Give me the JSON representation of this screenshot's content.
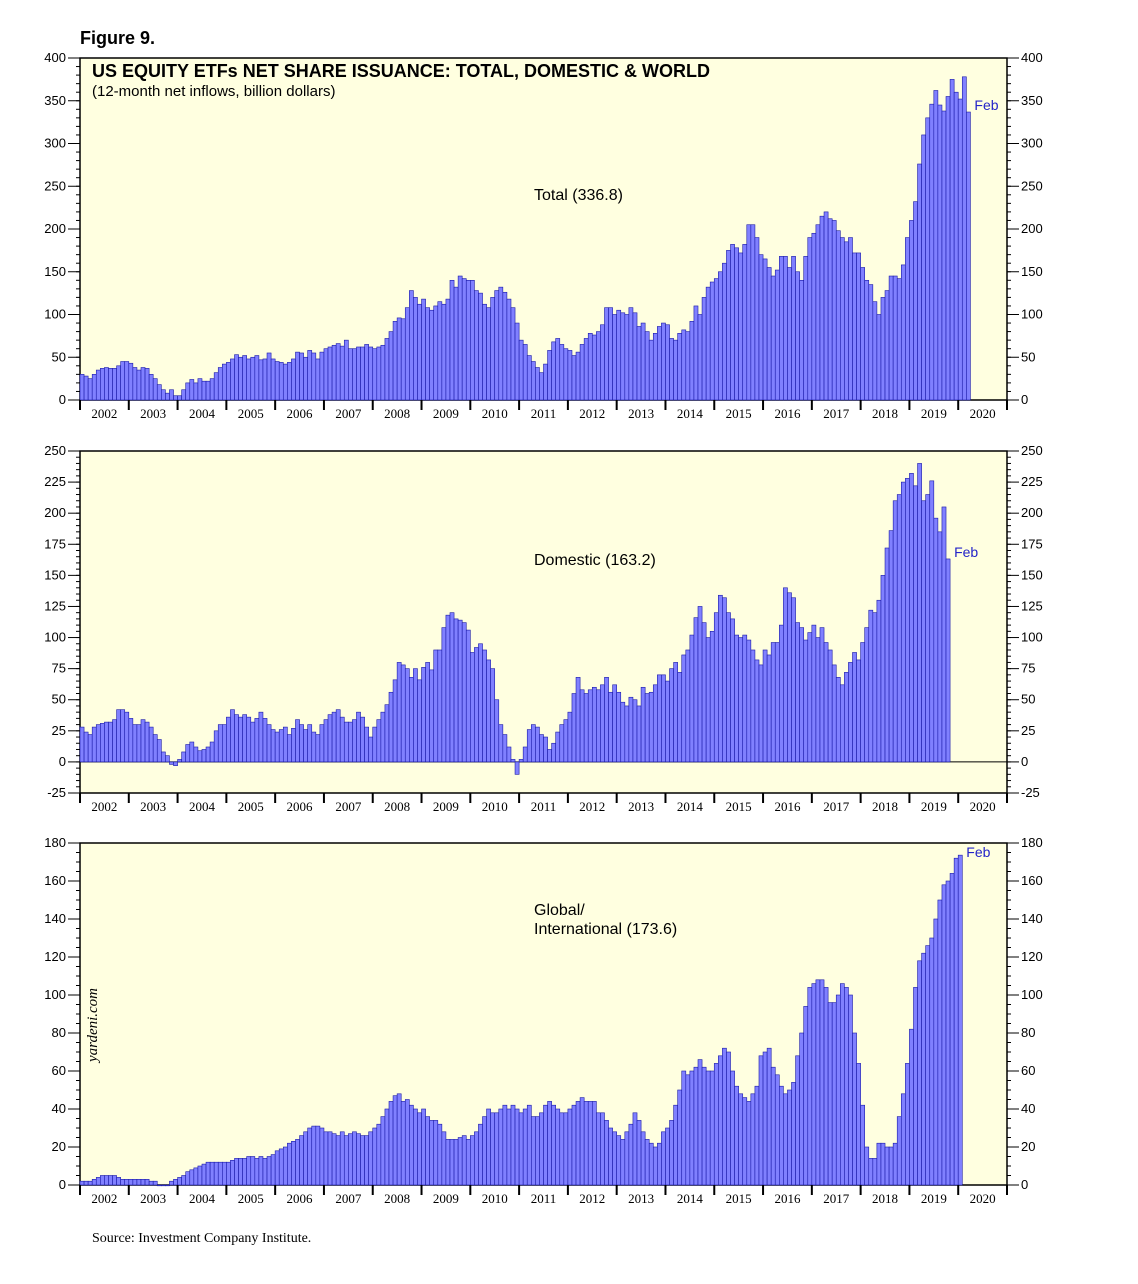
{
  "figure_label": "Figure 9.",
  "source_note": "Source: Investment Company Institute.",
  "watermark": "yardeni.com",
  "colors": {
    "panel_bg": "#ffffe0",
    "bar_fill": "#8080ff",
    "bar_stroke": "#1a1aa8",
    "annotation": "#2424c8"
  },
  "chart_data": [
    {
      "type": "bar",
      "title": "US EQUITY ETFs NET SHARE ISSUANCE: TOTAL, DOMESTIC & WORLD",
      "subtitle": "(12-month net inflows, billion dollars)",
      "series_label": "Total (336.8)",
      "last_point_label": "Feb",
      "x_start": "2002-01",
      "x_end": "2020-12",
      "x_tick_labels": [
        "2002",
        "2003",
        "2004",
        "2005",
        "2006",
        "2007",
        "2008",
        "2009",
        "2010",
        "2011",
        "2012",
        "2013",
        "2014",
        "2015",
        "2016",
        "2017",
        "2018",
        "2019",
        "2020"
      ],
      "ylim": [
        0,
        400
      ],
      "yticks": [
        0,
        50,
        100,
        150,
        200,
        250,
        300,
        350,
        400
      ],
      "values": [
        30,
        28,
        25,
        30,
        35,
        37,
        38,
        37,
        37,
        40,
        45,
        45,
        43,
        38,
        35,
        38,
        37,
        30,
        25,
        18,
        12,
        8,
        12,
        5,
        5,
        12,
        20,
        24,
        20,
        25,
        22,
        22,
        25,
        32,
        38,
        42,
        44,
        48,
        53,
        50,
        52,
        48,
        50,
        52,
        47,
        48,
        55,
        48,
        45,
        44,
        42,
        44,
        48,
        56,
        55,
        50,
        58,
        55,
        48,
        56,
        60,
        62,
        64,
        66,
        63,
        70,
        60,
        60,
        62,
        62,
        65,
        62,
        60,
        62,
        64,
        72,
        80,
        92,
        96,
        95,
        108,
        128,
        120,
        112,
        118,
        108,
        105,
        110,
        115,
        112,
        118,
        140,
        132,
        145,
        142,
        140,
        140,
        128,
        125,
        112,
        108,
        120,
        128,
        132,
        126,
        118,
        108,
        90,
        70,
        65,
        52,
        45,
        38,
        32,
        42,
        58,
        68,
        72,
        65,
        60,
        58,
        52,
        56,
        65,
        72,
        78,
        76,
        80,
        88,
        108,
        108,
        100,
        105,
        102,
        100,
        108,
        102,
        86,
        90,
        80,
        70,
        78,
        86,
        90,
        88,
        72,
        70,
        78,
        82,
        80,
        92,
        110,
        100,
        120,
        132,
        138,
        142,
        150,
        160,
        175,
        182,
        178,
        172,
        182,
        205,
        205,
        190,
        170,
        165,
        155,
        145,
        152,
        168,
        168,
        155,
        168,
        150,
        140,
        168,
        190,
        195,
        205,
        215,
        220,
        212,
        210,
        198,
        190,
        185,
        190,
        172,
        172,
        155,
        140,
        135,
        115,
        100,
        120,
        128,
        145,
        145,
        142,
        158,
        190,
        210,
        232,
        276,
        310,
        330,
        346,
        362,
        345,
        338,
        355,
        375,
        360,
        352,
        378,
        336.8
      ]
    },
    {
      "type": "bar",
      "series_label": "Domestic (163.2)",
      "last_point_label": "Feb",
      "x_start": "2002-01",
      "x_end": "2020-12",
      "x_tick_labels": [
        "2002",
        "2003",
        "2004",
        "2005",
        "2006",
        "2007",
        "2008",
        "2009",
        "2010",
        "2011",
        "2012",
        "2013",
        "2014",
        "2015",
        "2016",
        "2017",
        "2018",
        "2019",
        "2020"
      ],
      "ylim": [
        -25,
        250
      ],
      "yticks": [
        -25,
        0,
        25,
        50,
        75,
        100,
        125,
        150,
        175,
        200,
        225,
        250
      ],
      "values": [
        28,
        24,
        22,
        28,
        30,
        31,
        32,
        32,
        34,
        42,
        42,
        40,
        35,
        30,
        30,
        34,
        32,
        28,
        22,
        18,
        8,
        5,
        -2,
        -3,
        2,
        8,
        14,
        16,
        12,
        9,
        10,
        12,
        16,
        25,
        30,
        30,
        36,
        42,
        38,
        36,
        38,
        36,
        32,
        35,
        40,
        35,
        30,
        26,
        24,
        26,
        28,
        22,
        27,
        34,
        30,
        26,
        30,
        24,
        22,
        30,
        34,
        38,
        40,
        42,
        36,
        32,
        32,
        34,
        40,
        36,
        28,
        20,
        28,
        34,
        40,
        46,
        56,
        66,
        80,
        78,
        75,
        68,
        75,
        66,
        76,
        80,
        74,
        90,
        90,
        108,
        118,
        120,
        115,
        114,
        112,
        106,
        88,
        92,
        95,
        90,
        82,
        75,
        50,
        30,
        22,
        12,
        2,
        -10,
        2,
        12,
        26,
        30,
        28,
        22,
        20,
        10,
        15,
        24,
        30,
        34,
        40,
        55,
        68,
        58,
        55,
        58,
        60,
        58,
        62,
        68,
        56,
        62,
        56,
        48,
        45,
        52,
        50,
        45,
        60,
        55,
        56,
        62,
        70,
        70,
        65,
        75,
        80,
        72,
        86,
        90,
        102,
        116,
        125,
        112,
        100,
        105,
        120,
        134,
        132,
        120,
        115,
        102,
        100,
        102,
        98,
        90,
        82,
        78,
        90,
        86,
        96,
        96,
        110,
        140,
        136,
        132,
        112,
        108,
        98,
        104,
        110,
        100,
        108,
        96,
        90,
        78,
        68,
        62,
        72,
        80,
        88,
        82,
        96,
        108,
        122,
        120,
        130,
        150,
        172,
        186,
        210,
        215,
        225,
        228,
        232,
        222,
        240,
        210,
        215,
        226,
        196,
        185,
        205,
        163.2
      ]
    },
    {
      "type": "bar",
      "series_label_lines": [
        "Global/",
        "International (173.6)"
      ],
      "last_point_label": "Feb",
      "x_start": "2002-01",
      "x_end": "2020-12",
      "x_tick_labels": [
        "2002",
        "2003",
        "2004",
        "2005",
        "2006",
        "2007",
        "2008",
        "2009",
        "2010",
        "2011",
        "2012",
        "2013",
        "2014",
        "2015",
        "2016",
        "2017",
        "2018",
        "2019",
        "2020"
      ],
      "ylim": [
        0,
        180
      ],
      "yticks": [
        0,
        20,
        40,
        60,
        80,
        100,
        120,
        140,
        160,
        180
      ],
      "values": [
        2,
        2,
        2,
        3,
        4,
        5,
        5,
        5,
        5,
        4,
        3,
        3,
        3,
        3,
        3,
        3,
        3,
        2,
        2,
        0,
        0,
        0,
        2,
        3,
        4,
        5,
        7,
        8,
        9,
        10,
        11,
        12,
        12,
        12,
        12,
        12,
        12,
        13,
        14,
        14,
        14,
        15,
        15,
        14,
        15,
        14,
        15,
        16,
        18,
        19,
        20,
        22,
        23,
        24,
        26,
        28,
        30,
        31,
        31,
        30,
        28,
        28,
        27,
        26,
        28,
        26,
        27,
        28,
        27,
        26,
        26,
        28,
        30,
        32,
        36,
        40,
        44,
        47,
        48,
        44,
        45,
        42,
        40,
        38,
        40,
        36,
        34,
        34,
        32,
        28,
        24,
        24,
        24,
        25,
        26,
        24,
        26,
        28,
        32,
        36,
        40,
        38,
        38,
        40,
        42,
        40,
        42,
        40,
        38,
        40,
        42,
        36,
        36,
        38,
        42,
        44,
        42,
        40,
        38,
        38,
        40,
        42,
        44,
        46,
        44,
        44,
        44,
        38,
        38,
        34,
        30,
        28,
        26,
        24,
        28,
        32,
        38,
        34,
        28,
        24,
        22,
        20,
        22,
        28,
        30,
        34,
        42,
        50,
        60,
        58,
        60,
        62,
        66,
        62,
        60,
        60,
        64,
        68,
        72,
        70,
        60,
        52,
        48,
        46,
        44,
        48,
        52,
        68,
        70,
        72,
        62,
        58,
        52,
        48,
        50,
        54,
        68,
        80,
        94,
        104,
        106,
        108,
        108,
        104,
        96,
        96,
        100,
        106,
        104,
        100,
        80,
        64,
        42,
        20,
        14,
        14,
        22,
        22,
        20,
        20,
        22,
        36,
        48,
        64,
        82,
        104,
        118,
        122,
        126,
        130,
        140,
        150,
        158,
        160,
        164,
        172,
        173.6
      ]
    }
  ]
}
